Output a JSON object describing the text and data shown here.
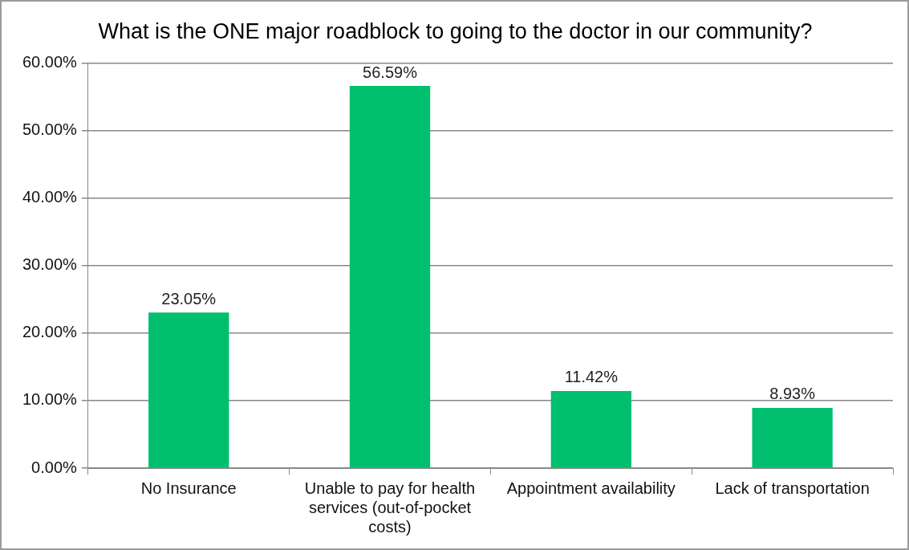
{
  "chart_data": {
    "type": "bar",
    "title": "What is the ONE major roadblock to going to the doctor in our community?",
    "categories": [
      "No Insurance",
      "Unable to pay for health services (out-of-pocket costs)",
      "Appointment availability",
      "Lack of transportation"
    ],
    "values": [
      23.05,
      56.59,
      11.42,
      8.93
    ],
    "value_labels": [
      "23.05%",
      "56.59%",
      "11.42%",
      "8.93%"
    ],
    "color": "#00bf6f",
    "ylim": [
      0,
      60
    ],
    "yticks": [
      {
        "value": 0,
        "label": "0.00%"
      },
      {
        "value": 10,
        "label": "10.00%"
      },
      {
        "value": 20,
        "label": "20.00%"
      },
      {
        "value": 30,
        "label": "30.00%"
      },
      {
        "value": 40,
        "label": "40.00%"
      },
      {
        "value": 50,
        "label": "50.00%"
      },
      {
        "value": 60,
        "label": "60.00%"
      }
    ],
    "grid": "y",
    "legend": false
  }
}
